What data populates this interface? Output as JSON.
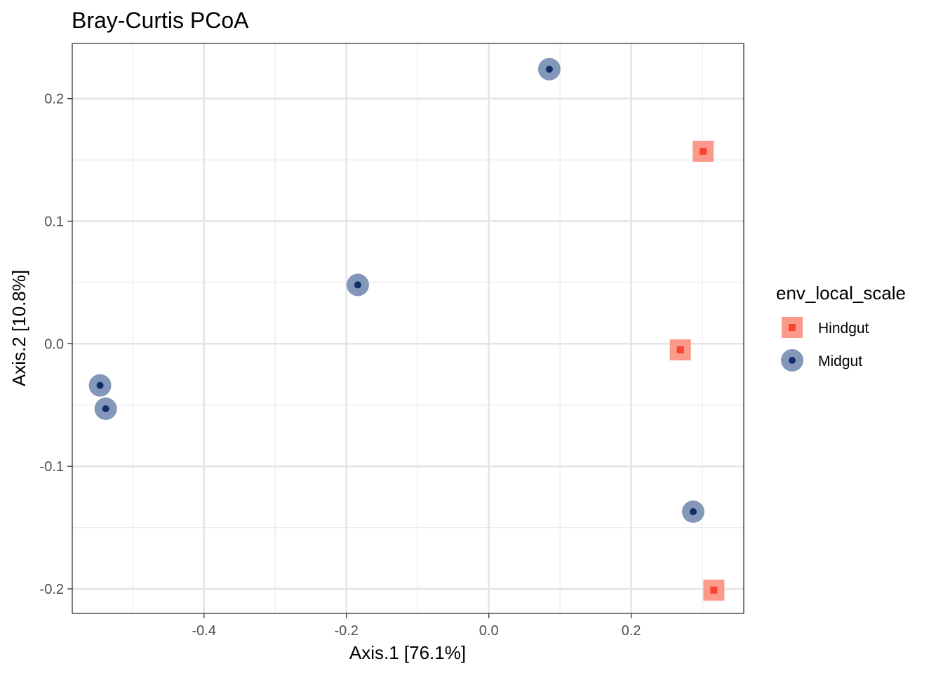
{
  "chart_data": {
    "type": "scatter",
    "title": "Bray-Curtis PCoA",
    "xlabel": "Axis.1   [76.1%]",
    "ylabel": "Axis.2   [10.8%]",
    "xlim": [
      -0.585,
      0.358
    ],
    "ylim": [
      -0.22,
      0.245
    ],
    "x_ticks": [
      -0.4,
      -0.2,
      0.0,
      0.2
    ],
    "x_tick_labels": [
      "-0.4",
      "-0.2",
      "0.0",
      "0.2"
    ],
    "y_ticks": [
      -0.2,
      -0.1,
      0.0,
      0.1,
      0.2
    ],
    "y_tick_labels": [
      "-0.2",
      "-0.1",
      "0.0",
      "0.1",
      "0.2"
    ],
    "grid": true,
    "legend": {
      "title": "env_local_scale",
      "position": "right"
    },
    "series": [
      {
        "name": "Hindgut",
        "marker": "square",
        "color_outer": "#fb9a8a",
        "color_inner": "#f8442e",
        "points": [
          {
            "x": 0.301,
            "y": 0.157
          },
          {
            "x": 0.269,
            "y": -0.005
          },
          {
            "x": 0.316,
            "y": -0.201
          }
        ]
      },
      {
        "name": "Midgut",
        "marker": "circle",
        "color_outer": "#8397b9",
        "color_inner": "#0e2f6b",
        "points": [
          {
            "x": 0.085,
            "y": 0.224
          },
          {
            "x": -0.184,
            "y": 0.048
          },
          {
            "x": -0.546,
            "y": -0.034
          },
          {
            "x": -0.538,
            "y": -0.053
          },
          {
            "x": 0.287,
            "y": -0.137
          }
        ]
      }
    ]
  }
}
